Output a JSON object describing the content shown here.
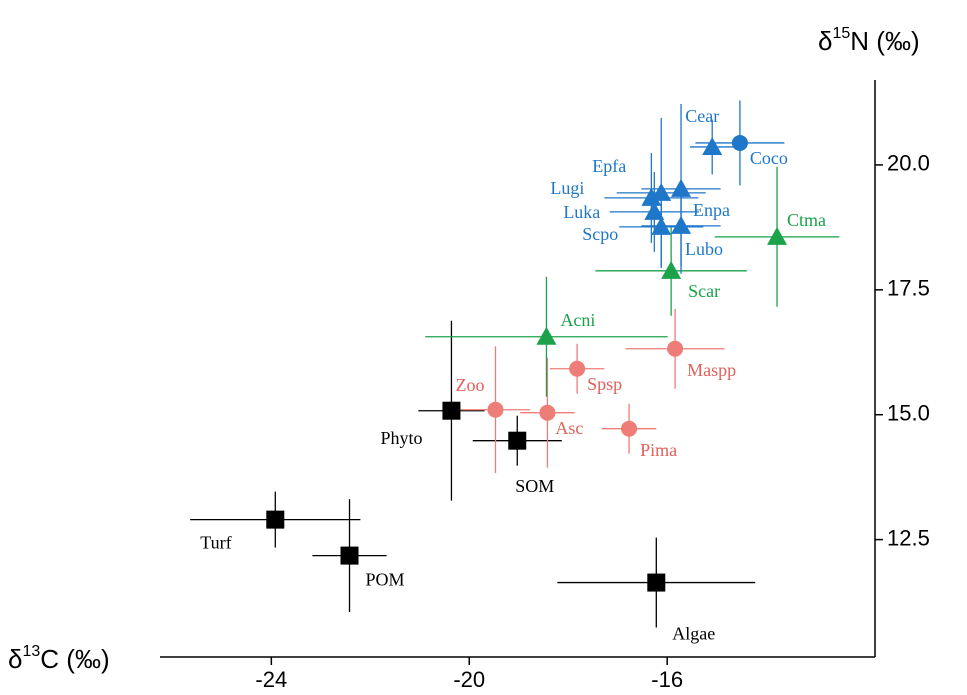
{
  "chart_data": {
    "type": "scatter",
    "y_label": {
      "prefix": "δ",
      "sup": "15",
      "suffix": "N (‰)"
    },
    "x_label": {
      "prefix": "δ",
      "sup": "13",
      "suffix": "C (‰)"
    },
    "xlim": [
      -26.25,
      -11.8
    ],
    "ylim": [
      10.15,
      21.7
    ],
    "xticks": [
      -24,
      -20,
      -16
    ],
    "yticks": [
      {
        "value": 20,
        "label": "20.0"
      },
      17.5,
      {
        "value": 15,
        "label": "15.0"
      },
      12.5
    ],
    "series": [
      {
        "color": "#000000",
        "marker": "square",
        "labels": [
          "Turf",
          "POM",
          "Phyto",
          "SOM",
          "Algae"
        ],
        "x": [
          -23.92,
          -22.42,
          -20.36,
          -19.03,
          -16.22
        ],
        "y": [
          12.9,
          12.18,
          15.08,
          14.48,
          11.64
        ],
        "xerr": [
          1.72,
          0.75,
          0.67,
          0.9,
          2.0
        ],
        "yerr": [
          0.56,
          1.13,
          1.8,
          0.5,
          0.9
        ]
      },
      {
        "color": "#ee7d78",
        "marker": "circle",
        "labels": [
          "Zoo",
          "Asc",
          "Spsp",
          "Pima",
          "Maspp"
        ],
        "x": [
          -19.47,
          -18.42,
          -17.82,
          -16.77,
          -15.84
        ],
        "y": [
          15.1,
          15.04,
          15.92,
          14.72,
          16.32
        ],
        "xerr": [
          0.7,
          0.55,
          0.55,
          0.55,
          1.0
        ],
        "yerr": [
          1.27,
          1.1,
          0.5,
          0.5,
          0.8
        ]
      },
      {
        "color": "#1ba24a",
        "marker": "triangle",
        "labels": [
          "Acni",
          "Scar",
          "Ctma"
        ],
        "x": [
          -18.44,
          -15.92,
          -13.78
        ],
        "y": [
          16.56,
          17.88,
          18.56
        ],
        "xerr": [
          2.45,
          1.53,
          1.26
        ],
        "yerr": [
          1.2,
          0.9,
          1.4
        ]
      },
      {
        "color": "#1f77c9",
        "marker": "triangle",
        "labels": [
          "Cear",
          "Epfa",
          "Lugi",
          "Enpa",
          "Luka",
          "Scpo",
          "Lubo"
        ],
        "x": [
          -15.09,
          -16.12,
          -16.32,
          -15.72,
          -16.26,
          -16.12,
          -15.72
        ],
        "y": [
          20.36,
          19.44,
          19.34,
          19.52,
          19.06,
          18.76,
          18.78
        ],
        "xerr": [
          0.45,
          0.9,
          0.95,
          0.8,
          0.9,
          0.85,
          0.8
        ],
        "yerr": [
          0.55,
          1.5,
          0.9,
          1.7,
          0.8,
          0.8,
          0.8
        ]
      },
      {
        "color": "#1f77c9",
        "marker": "circle",
        "labels": [
          "Coco"
        ],
        "x": [
          -14.53
        ],
        "y": [
          20.44
        ],
        "xerr": [
          0.9
        ],
        "yerr": [
          0.85
        ]
      }
    ]
  }
}
